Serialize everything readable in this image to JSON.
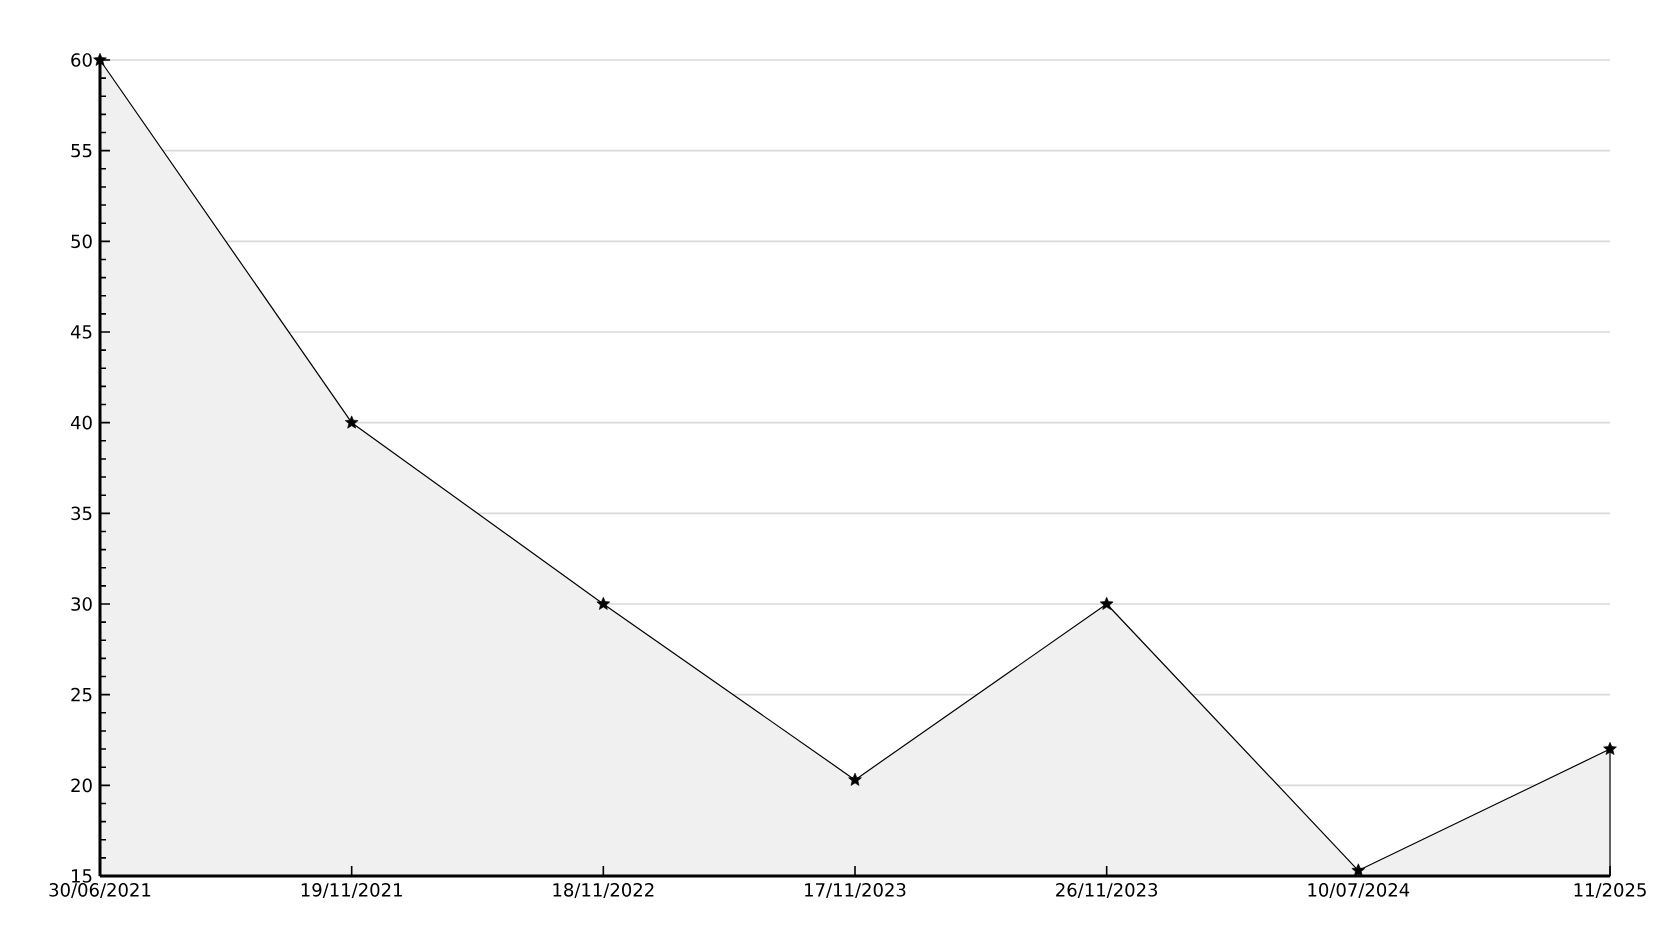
{
  "chart_data": {
    "type": "area",
    "categories": [
      "30/06/2021",
      "19/11/2021",
      "18/11/2022",
      "17/11/2023",
      "26/11/2023",
      "10/07/2024",
      "11/2025"
    ],
    "values": [
      60,
      40,
      30,
      20.3,
      30,
      15.3,
      22
    ],
    "color": "#f0f0f0",
    "ylim": [
      15,
      60
    ],
    "yticks": [
      15,
      20,
      25,
      30,
      35,
      40,
      45,
      50,
      55,
      60
    ],
    "grid": "y",
    "marker": "star",
    "line_style": "solid"
  }
}
